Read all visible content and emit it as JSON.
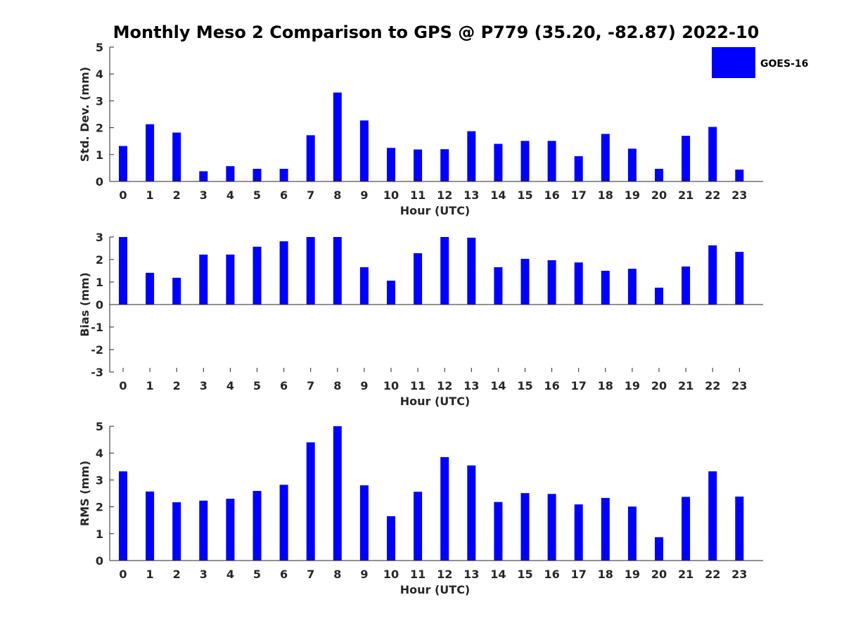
{
  "chart_data": {
    "type": "bar",
    "title": "Monthly Meso 2 Comparison to GPS @ P779 (35.20, -82.87) 2022-10",
    "legend": {
      "label": "GOES-16",
      "color": "#0000ff",
      "placement": "top-right"
    },
    "categories": [
      "0",
      "1",
      "2",
      "3",
      "4",
      "5",
      "6",
      "7",
      "8",
      "9",
      "10",
      "11",
      "12",
      "13",
      "14",
      "15",
      "16",
      "17",
      "18",
      "19",
      "20",
      "21",
      "22",
      "23"
    ],
    "panels": [
      {
        "name": "std-dev",
        "ylabel": "Std. Dev. (mm)",
        "xlabel": "Hour (UTC)",
        "ylim": [
          0,
          5
        ],
        "yticks": [
          "0",
          "1",
          "2",
          "3",
          "4",
          "5"
        ],
        "series": [
          {
            "name": "GOES-16",
            "values": [
              1.32,
              2.13,
              1.82,
              0.38,
              0.57,
              0.47,
              0.47,
              1.72,
              3.31,
              2.27,
              1.25,
              1.19,
              1.2,
              1.87,
              1.4,
              1.51,
              1.51,
              0.94,
              1.77,
              1.22,
              0.47,
              1.7,
              2.03,
              0.44
            ]
          }
        ]
      },
      {
        "name": "bias",
        "ylabel": "Bias (mm)",
        "xlabel": "Hour (UTC)",
        "ylim": [
          -3,
          3
        ],
        "yticks": [
          "-3",
          "-2",
          "-1",
          "0",
          "1",
          "2",
          "3"
        ],
        "series": [
          {
            "name": "GOES-16",
            "values": [
              3.0,
              1.41,
              1.19,
              2.22,
              2.22,
              2.57,
              2.81,
              3.0,
              3.0,
              1.66,
              1.06,
              2.28,
              3.0,
              2.97,
              1.66,
              2.03,
              1.97,
              1.87,
              1.5,
              1.59,
              0.75,
              1.69,
              2.63,
              2.34
            ]
          }
        ]
      },
      {
        "name": "rms",
        "ylabel": "RMS (mm)",
        "xlabel": "Hour (UTC)",
        "ylim": [
          0,
          5
        ],
        "yticks": [
          "0",
          "1",
          "2",
          "3",
          "4",
          "5"
        ],
        "series": [
          {
            "name": "GOES-16",
            "values": [
              3.32,
              2.57,
              2.17,
              2.23,
              2.3,
              2.59,
              2.82,
              4.4,
              5.0,
              2.8,
              1.65,
              2.56,
              3.85,
              3.54,
              2.18,
              2.51,
              2.48,
              2.09,
              2.33,
              2.01,
              0.87,
              2.37,
              3.32,
              2.38
            ]
          }
        ]
      }
    ]
  }
}
